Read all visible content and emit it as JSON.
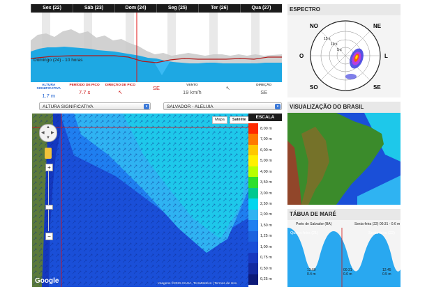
{
  "forecast": {
    "days": [
      "Sex (22)",
      "Sáb (23)",
      "Dom (24)",
      "Seg (25)",
      "Ter (26)",
      "Qua (27)"
    ],
    "current_label": "Domingo (24) - 10 horas",
    "stats": [
      {
        "label": "ALTURA SIGNIFICATIVA",
        "value": "1.7 m",
        "label_color": "#1a5fd0",
        "value_color": "#1a5fd0"
      },
      {
        "label": "PERÍODO DE PICO",
        "value": "7.7 s",
        "label_color": "#cc1111",
        "value_color": "#cc1111"
      },
      {
        "label": "DIREÇÃO DE PICO",
        "value": "↖",
        "label_color": "#cc1111",
        "value_color": "#cc1111"
      },
      {
        "label": "",
        "value": "SE",
        "label_color": "#cc1111",
        "value_color": "#cc1111"
      },
      {
        "label": "VENTO",
        "value": "19 km/h",
        "label_color": "#555555",
        "value_color": "#555555"
      },
      {
        "label": "",
        "value": "↖",
        "label_color": "#555555",
        "value_color": "#555555"
      },
      {
        "label": "DIREÇÃO",
        "value": "SE",
        "label_color": "#555555",
        "value_color": "#555555"
      }
    ]
  },
  "controls": {
    "variable_select": "ALTURA SIGNIFICATIVA",
    "location_select": "SALVADOR - ALELUIA"
  },
  "map": {
    "type_options": [
      "Mapa",
      "Satélite"
    ],
    "selected_type": "Satélite",
    "google_label": "Google",
    "attribution": "Imagens ©2015 NASA, TerraMetrics  |  Termos de Uso",
    "zoom_in": "+",
    "zoom_out": "−"
  },
  "scale": {
    "title": "ESCALA",
    "items": [
      {
        "label": "8,00 m",
        "color": "#ff2a00"
      },
      {
        "label": "7,00 m",
        "color": "#ff7a00"
      },
      {
        "label": "6,00 m",
        "color": "#ffc800"
      },
      {
        "label": "5,00 m",
        "color": "#fff000"
      },
      {
        "label": "4,00 m",
        "color": "#b8ff00"
      },
      {
        "label": "3,50 m",
        "color": "#2ddf2d"
      },
      {
        "label": "3,00 m",
        "color": "#00c98f"
      },
      {
        "label": "2,50 m",
        "color": "#00d6ee"
      },
      {
        "label": "2,00 m",
        "color": "#2fb3f2"
      },
      {
        "label": "1,50 m",
        "color": "#1f7ff0"
      },
      {
        "label": "1,25 m",
        "color": "#1b62df"
      },
      {
        "label": "1,00 m",
        "color": "#1a4fd8"
      },
      {
        "label": "0,75 m",
        "color": "#1838bf"
      },
      {
        "label": "0,50 m",
        "color": "#142aa0"
      },
      {
        "label": "0,25 m",
        "color": "#0d1a78"
      }
    ]
  },
  "spectrum": {
    "title": "ESPECTRO",
    "directions": [
      "NO",
      "NE",
      "O",
      "L",
      "SO",
      "SE"
    ],
    "rings": [
      "15 s",
      "10 s",
      "5 s"
    ]
  },
  "brazil": {
    "title": "VISUALIZAÇÃO DO BRASIL"
  },
  "tide": {
    "title": "TÁBUA DE MARÉ",
    "port": "Porto de Salvador (BA)",
    "current": "Sexta-feira (22) 00:31 - 0.6 m",
    "left_day": "Quinta-feira (21)",
    "right_day": "Sexta-feira (22)",
    "lows": [
      {
        "time": "13:60",
        "height": "0.4 m"
      },
      {
        "time": "00:31",
        "height": "0.6 m"
      },
      {
        "time": "12:45",
        "height": "0.5 m"
      }
    ]
  }
}
